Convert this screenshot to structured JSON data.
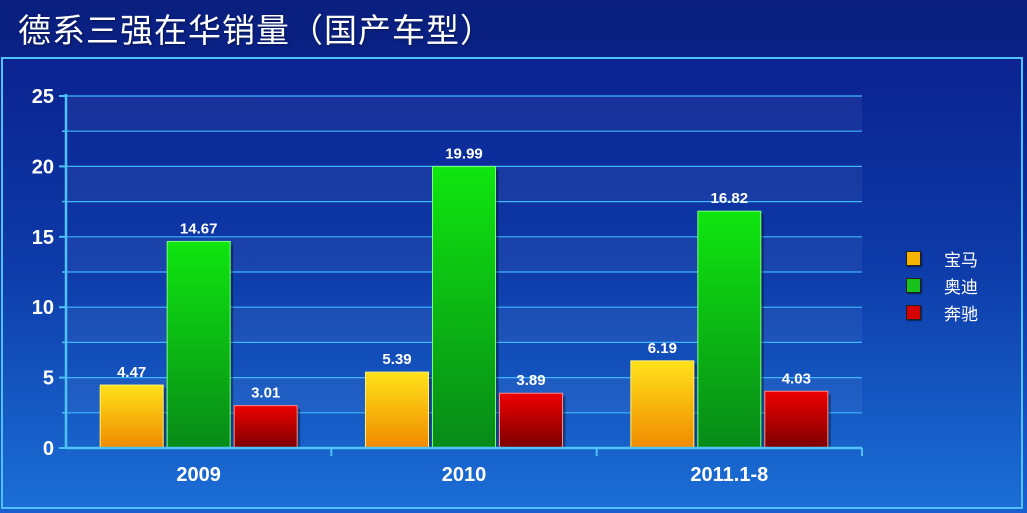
{
  "slide": {
    "title": "德系三强在华销量（国产车型）"
  },
  "chart_data": {
    "type": "bar",
    "title": "德系三强在华销量（国产车型）",
    "categories": [
      "2009",
      "2010",
      "2011.1-8"
    ],
    "series": [
      {
        "name": "宝马",
        "values": [
          4.47,
          5.39,
          6.19
        ],
        "color": "#f5b400",
        "value_labels": [
          "4.47",
          "5.39",
          "6.19"
        ]
      },
      {
        "name": "奥迪",
        "values": [
          14.67,
          19.99,
          16.82
        ],
        "color": "#17c21a",
        "value_labels": [
          "14.67",
          "19.99",
          "16.82"
        ]
      },
      {
        "name": "奔驰",
        "values": [
          3.01,
          3.89,
          4.03
        ],
        "color": "#d40000",
        "value_labels": [
          "3.01",
          "3.89",
          "4.03"
        ]
      }
    ],
    "ylim": [
      0,
      25
    ],
    "y_ticks": [
      "0",
      "5",
      "10",
      "15",
      "20",
      "25"
    ],
    "xlabel": "",
    "ylabel": "",
    "grid": true,
    "legend_position": "right"
  }
}
